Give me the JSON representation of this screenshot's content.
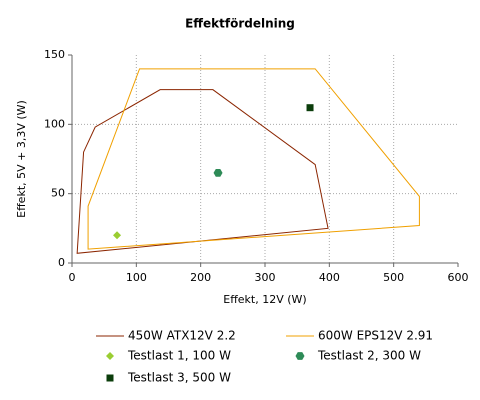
{
  "chart_data": {
    "type": "scatter",
    "title": "Effektfördelning",
    "x_label": "Effekt, 12V (W)",
    "y_label": "Effekt, 5V + 3,3V (W)",
    "xlim": [
      0,
      600
    ],
    "ylim": [
      0,
      150
    ],
    "xticks": [
      0,
      100,
      200,
      300,
      400,
      500,
      600
    ],
    "yticks": [
      0,
      50,
      100,
      150
    ],
    "grid": true,
    "series": [
      {
        "name": "450W ATX12V 2.2",
        "color": "#8b2500",
        "x": [
          8,
          18,
          36,
          137,
          219,
          378,
          398
        ],
        "values": [
          7,
          80,
          98,
          125,
          125,
          71,
          25
        ]
      },
      {
        "name": "600W EPS12V 2.91",
        "color": "#f0a000",
        "x": [
          25,
          25,
          105,
          378,
          540,
          540
        ],
        "values": [
          10,
          41,
          140,
          140,
          48,
          27
        ]
      },
      {
        "name": "Testlast 1, 100 W",
        "color": "#9acd32",
        "marker": "diamond",
        "x": [
          70
        ],
        "values": [
          20
        ]
      },
      {
        "name": "Testlast 2, 300 W",
        "color": "#2e8b57",
        "marker": "hexagon",
        "x": [
          227
        ],
        "values": [
          65
        ]
      },
      {
        "name": "Testlast 3, 500 W",
        "color": "#0b3d0b",
        "marker": "square",
        "x": [
          370
        ],
        "values": [
          112
        ]
      }
    ]
  }
}
